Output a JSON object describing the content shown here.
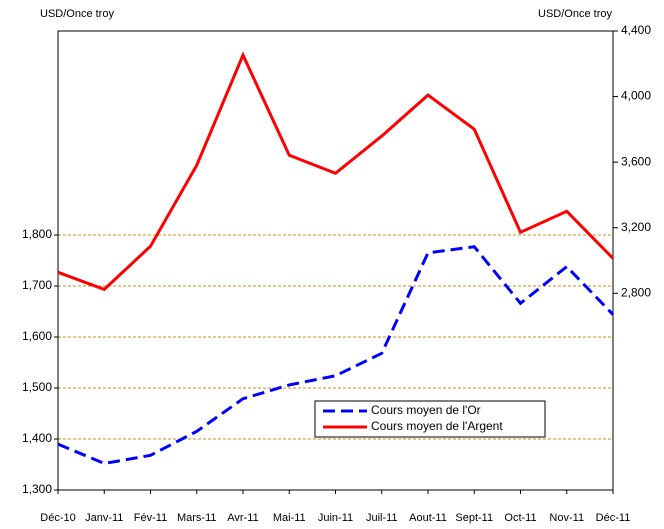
{
  "chart_data": {
    "type": "line",
    "ylabel": "USD/Once troy",
    "y2label": "USD/Once troy",
    "categories": [
      "Déc-10",
      "Janv-11",
      "Fév-11",
      "Mars-11",
      "Avr-11",
      "Mai-11",
      "Juin-11",
      "Juil-11",
      "Aout-11",
      "Sept-11",
      "Oct-11",
      "Nov-11",
      "Déc-11"
    ],
    "series": [
      {
        "name": "Cours moyen de l'Or",
        "color": "#0000ff",
        "dashed": true,
        "axis": "y",
        "values": [
          1390,
          1352,
          1368,
          1415,
          1479,
          1506,
          1524,
          1568,
          1765,
          1777,
          1666,
          1738,
          1644
        ]
      },
      {
        "name": "Cours moyen de l'Argent",
        "color": "#ff0000",
        "dashed": false,
        "axis": "y2",
        "values": [
          2928,
          2824,
          3087,
          3581,
          4253,
          3642,
          3532,
          3759,
          4009,
          3801,
          3172,
          3300,
          3013
        ]
      }
    ],
    "ylim": [
      1300,
      2200
    ],
    "yticks": [
      {
        "value": 1300,
        "label": "1,300"
      },
      {
        "value": 1400,
        "label": "1,400"
      },
      {
        "value": 1500,
        "label": "1,500"
      },
      {
        "value": 1600,
        "label": "1,600"
      },
      {
        "value": 1700,
        "label": "1,700"
      },
      {
        "value": 1800,
        "label": "1,800"
      }
    ],
    "y2lim": [
      1600,
      4400
    ],
    "y2ticks": [
      {
        "value": 2800,
        "label": "2,800"
      },
      {
        "value": 3200,
        "label": "3,200"
      },
      {
        "value": 3600,
        "label": "3,600"
      },
      {
        "value": 4000,
        "label": "4,000"
      },
      {
        "value": 4400,
        "label": "4,400"
      }
    ],
    "grid": true,
    "grid_color": "#c8901e"
  }
}
